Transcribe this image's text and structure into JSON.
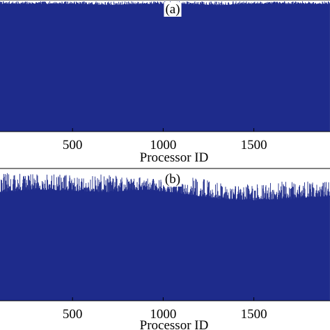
{
  "chart_data": [
    {
      "type": "bar",
      "panel_label": "(a)",
      "xlabel": "Processor ID",
      "x_ticks": [
        500,
        1000,
        1500
      ],
      "xlim": [
        100,
        1920
      ],
      "series_color": "#1c2a8a",
      "profile": {
        "x": [
          100,
          300,
          500,
          700,
          900,
          1100,
          1300,
          1500,
          1700,
          1900
        ],
        "baseline": [
          0.97,
          0.97,
          0.97,
          0.96,
          0.97,
          0.97,
          0.96,
          0.97,
          0.97,
          0.97
        ],
        "peak": [
          0.99,
          0.99,
          0.99,
          0.99,
          0.99,
          0.99,
          0.99,
          0.99,
          0.99,
          0.99
        ]
      },
      "ylim": [
        0,
        1
      ]
    },
    {
      "type": "bar",
      "panel_label": "(b)",
      "xlabel": "Processor ID",
      "x_ticks": [
        500,
        1000,
        1500
      ],
      "xlim": [
        100,
        1920
      ],
      "series_color": "#1c2a8a",
      "profile": {
        "x": [
          100,
          300,
          500,
          700,
          900,
          1100,
          1300,
          1500,
          1700,
          1900
        ],
        "baseline": [
          0.82,
          0.84,
          0.83,
          0.82,
          0.84,
          0.81,
          0.77,
          0.76,
          0.77,
          0.79
        ],
        "peak": [
          0.97,
          0.96,
          0.95,
          0.96,
          0.93,
          0.95,
          0.9,
          0.88,
          0.91,
          0.9
        ]
      },
      "ylim": [
        0,
        1
      ]
    }
  ]
}
